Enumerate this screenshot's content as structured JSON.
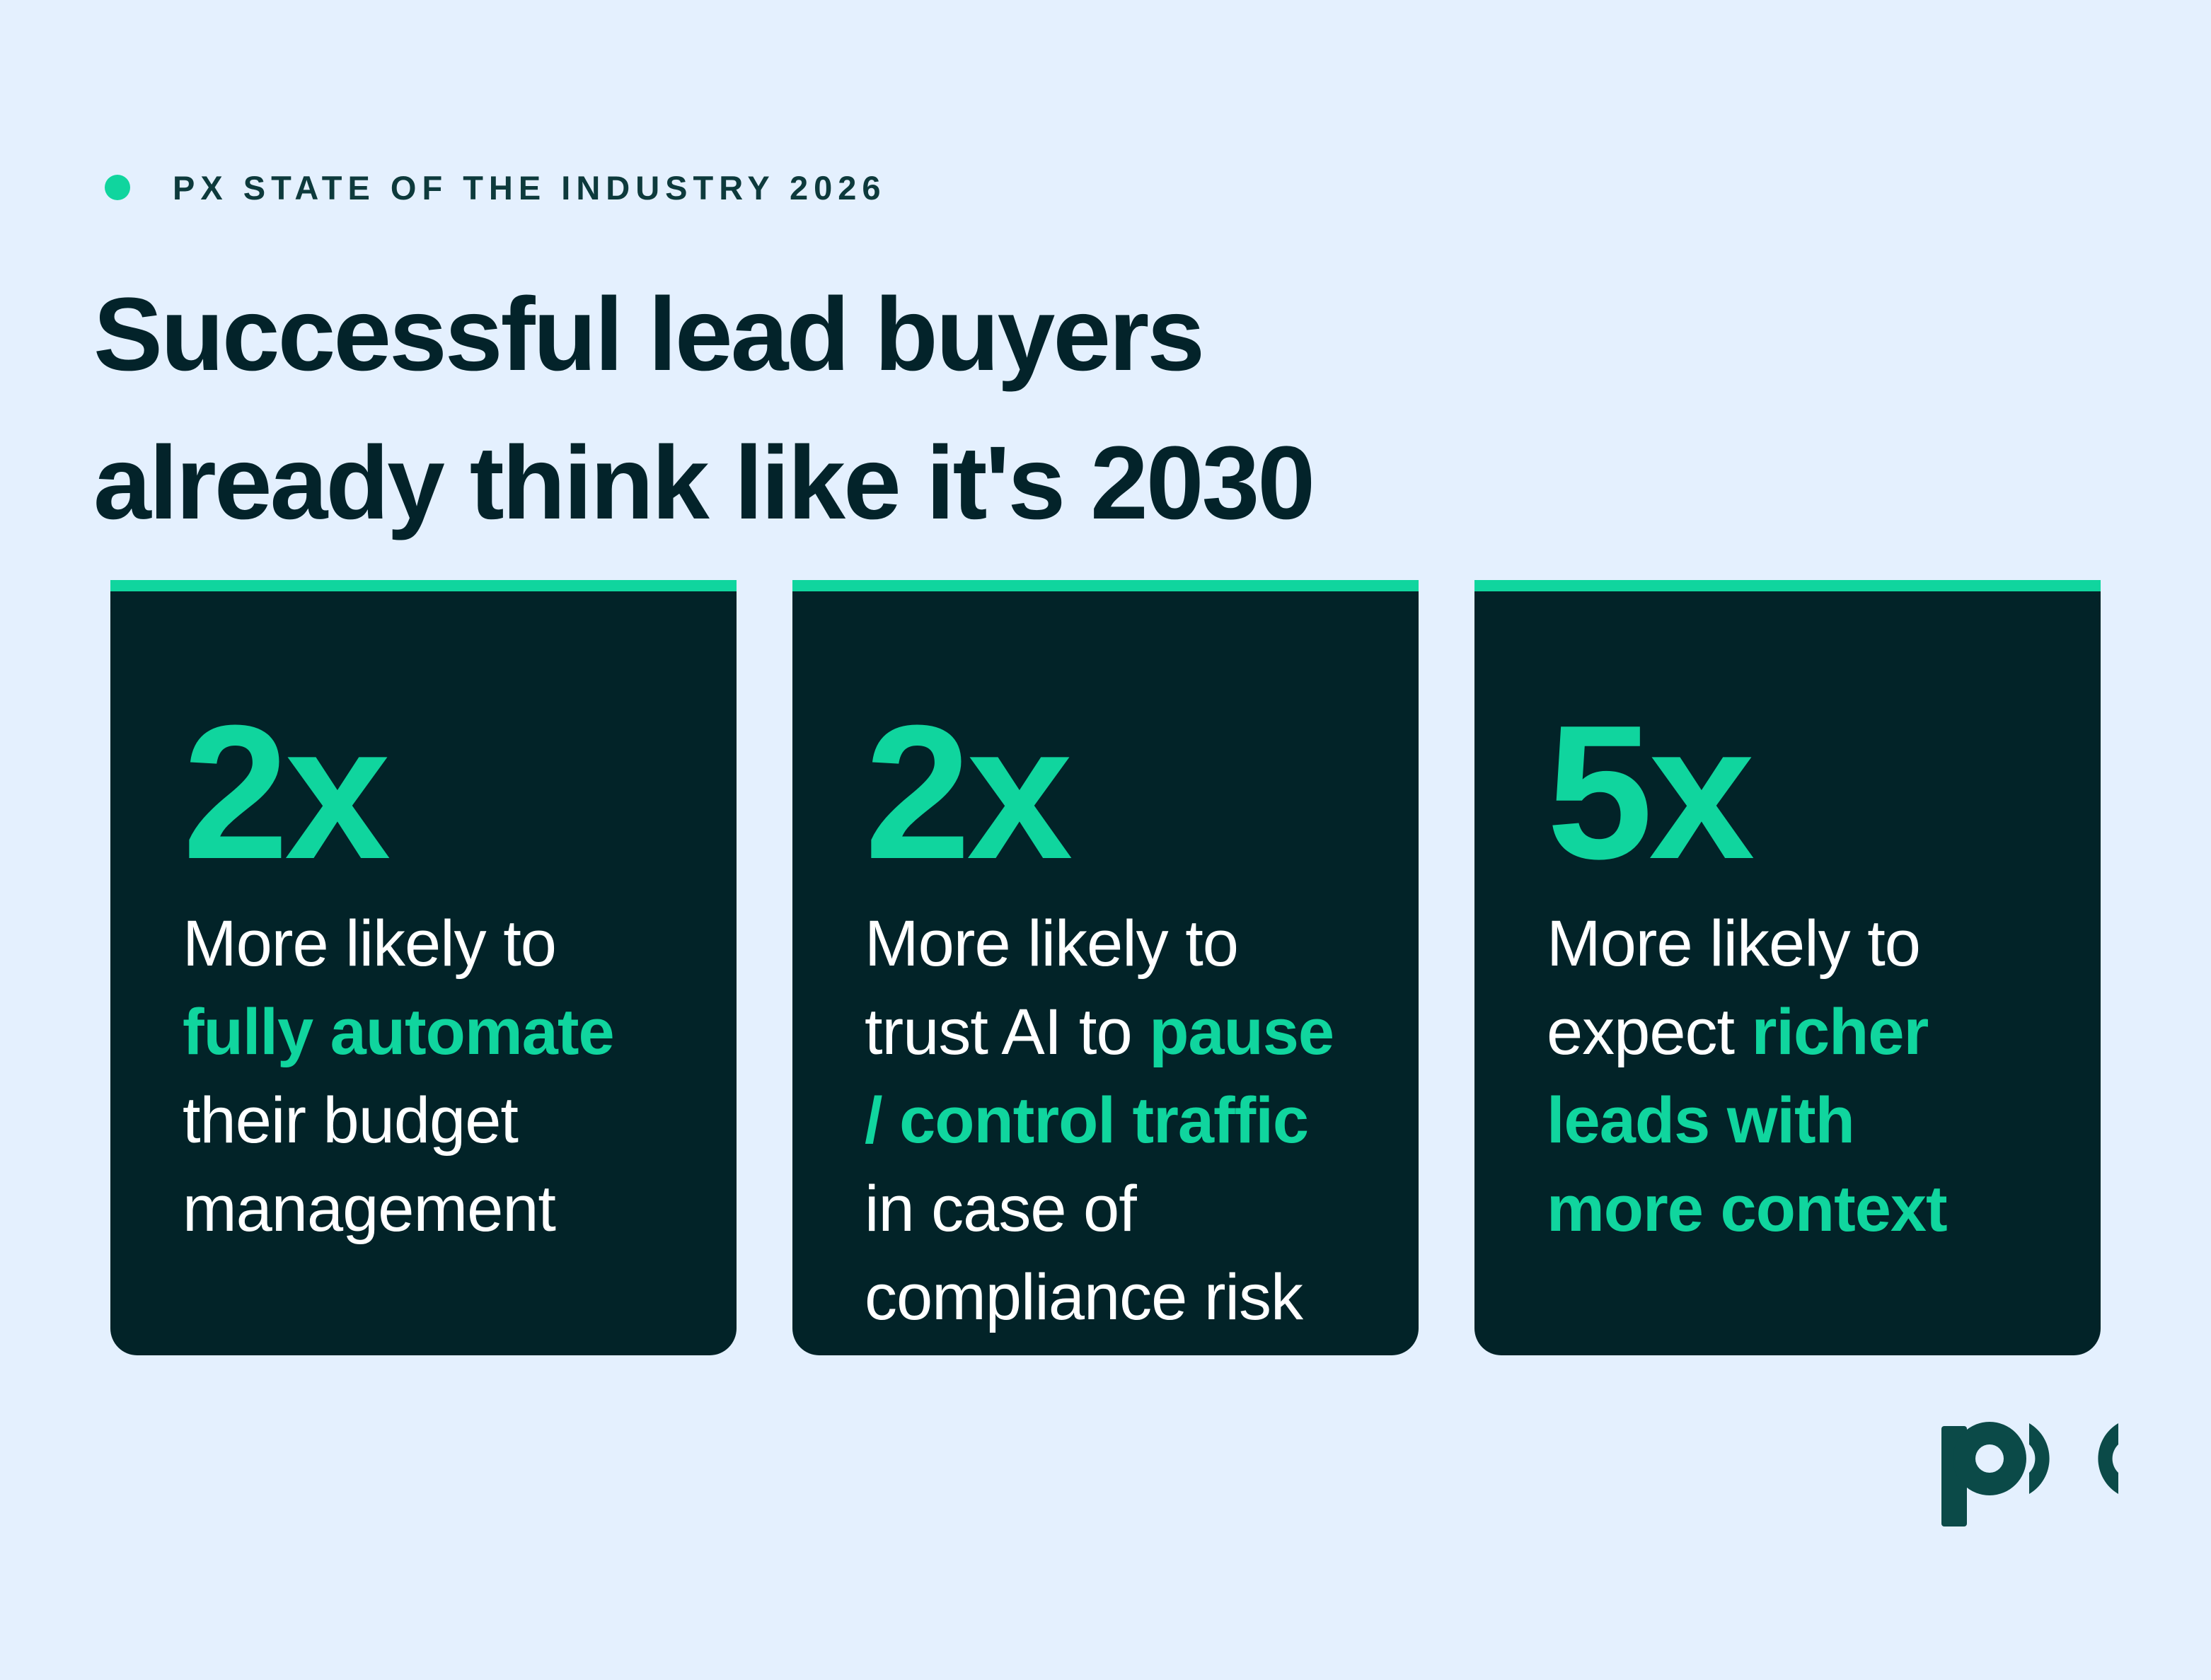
{
  "eyebrow": "PX STATE OF THE INDUSTRY 2026",
  "headline": {
    "line1": "Successful lead buyers",
    "line2": "already think like it's 2030"
  },
  "cards": [
    {
      "stat": "2x",
      "lines": [
        [
          {
            "text": "More likely to",
            "highlight": false
          }
        ],
        [
          {
            "text": "fully automate",
            "highlight": true
          }
        ],
        [
          {
            "text": "their budget",
            "highlight": false
          }
        ],
        [
          {
            "text": "management",
            "highlight": false
          }
        ]
      ]
    },
    {
      "stat": "2x",
      "lines": [
        [
          {
            "text": "More likely to",
            "highlight": false
          }
        ],
        [
          {
            "text": "trust AI to ",
            "highlight": false
          },
          {
            "text": "pause",
            "highlight": true
          }
        ],
        [
          {
            "text": "/ control traffic",
            "highlight": true
          }
        ],
        [
          {
            "text": "in case of",
            "highlight": false
          }
        ],
        [
          {
            "text": "compliance risk",
            "highlight": false
          }
        ]
      ]
    },
    {
      "stat": "5x",
      "lines": [
        [
          {
            "text": "More likely to",
            "highlight": false
          }
        ],
        [
          {
            "text": "expect ",
            "highlight": false
          },
          {
            "text": "richer",
            "highlight": true
          }
        ],
        [
          {
            "text": "leads with",
            "highlight": true
          }
        ],
        [
          {
            "text": "more context",
            "highlight": true
          }
        ]
      ]
    }
  ],
  "logo": {
    "text": "px",
    "icon": "px-logo-icon",
    "color": "#0b4a48"
  },
  "colors": {
    "background": "#e4f0fe",
    "accent": "#10d59e",
    "card": "#022328",
    "heading": "#03232a"
  }
}
